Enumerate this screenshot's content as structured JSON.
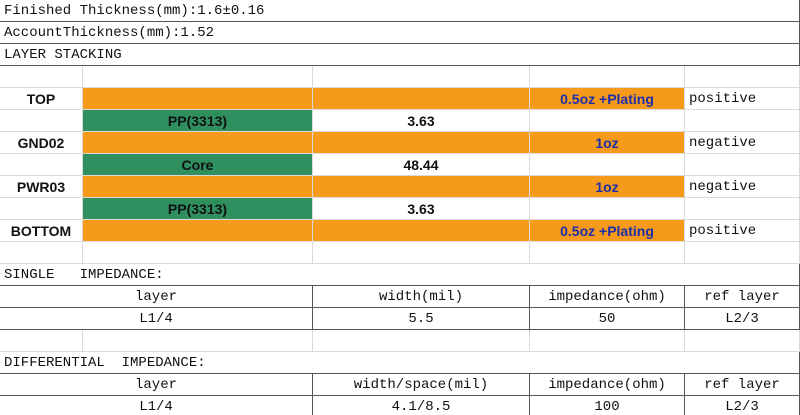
{
  "header": {
    "finished_thickness": "Finished Thickness(mm):1.6±0.16",
    "account_thickness": "AccountThickness(mm):1.52"
  },
  "layer_stacking": {
    "title": "LAYER STACKING",
    "rows": [
      {
        "name": "TOP",
        "copper": "0.5oz +Plating",
        "polarity": "positive"
      },
      {
        "material": "PP(3313)",
        "thickness": 3.63
      },
      {
        "name": "GND02",
        "copper": "1oz",
        "polarity": "negative"
      },
      {
        "material": "Core",
        "thickness": 48.44
      },
      {
        "name": "PWR03",
        "copper": "1oz",
        "polarity": "negative"
      },
      {
        "material": "PP(3313)",
        "thickness": 3.63
      },
      {
        "name": "BOTTOM",
        "copper": "0.5oz +Plating",
        "polarity": "positive"
      }
    ]
  },
  "single_impedance": {
    "title": "SINGLE   IMPEDANCE:",
    "columns": [
      "layer",
      "width(mil)",
      "impedance(ohm)",
      "ref layer"
    ],
    "rows": [
      [
        "L1/4",
        5.5,
        50,
        "L2/3"
      ]
    ]
  },
  "differential_impedance": {
    "title": "DIFFERENTIAL  IMPEDANCE:",
    "columns": [
      "layer",
      "width/space(mil)",
      "impedance(ohm)",
      "ref layer"
    ],
    "rows": [
      [
        "L1/4",
        "4.1/8.5",
        100,
        "L2/3"
      ]
    ]
  }
}
